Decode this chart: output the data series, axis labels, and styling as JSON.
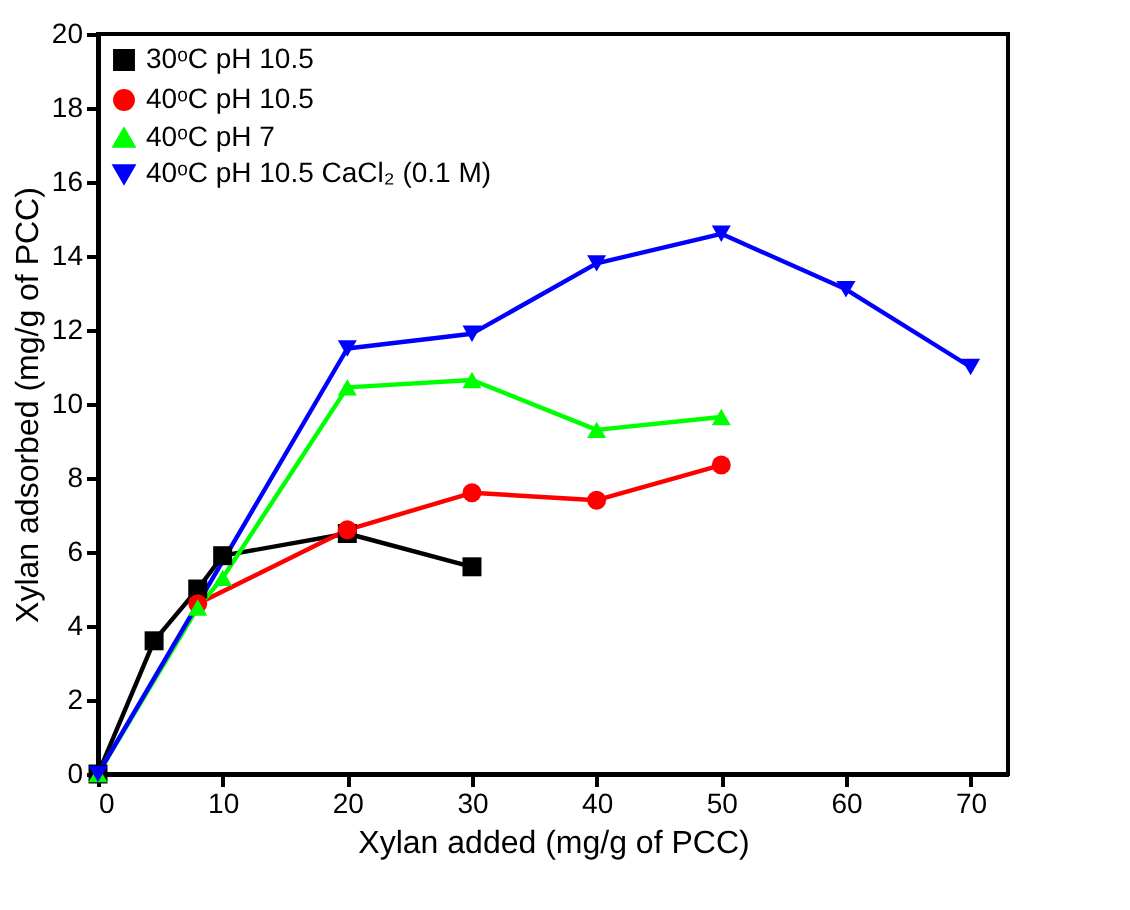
{
  "chart_data": {
    "type": "line",
    "xlabel": "Xylan added (mg/g of PCC)",
    "ylabel": "Xylan adsorbed (mg/g of PCC)",
    "xlim": [
      0,
      73
    ],
    "xticks": [
      0,
      10,
      20,
      30,
      40,
      50,
      60,
      70
    ],
    "ylim": [
      0,
      20
    ],
    "yticks": [
      0,
      2,
      4,
      6,
      8,
      10,
      12,
      14,
      16,
      18,
      20
    ],
    "grid": false,
    "legend": "top left",
    "line_style": "solid",
    "series": [
      {
        "name": "30ᵒC pH 10.5",
        "color": "#000000",
        "marker": "square",
        "x": [
          0,
          4.5,
          8,
          10,
          20,
          30
        ],
        "values": [
          0,
          3.6,
          5.0,
          5.9,
          6.5,
          5.6
        ]
      },
      {
        "name": "40ᵒC pH 10.5",
        "color": "#ff0000",
        "marker": "circle",
        "x": [
          8,
          20,
          30,
          40,
          50
        ],
        "values": [
          4.6,
          6.6,
          7.6,
          7.4,
          8.35
        ]
      },
      {
        "name": "40ᵒC pH 7",
        "color": "#00ff00",
        "marker": "triangle",
        "x": [
          0,
          8,
          10,
          20,
          30,
          40,
          50
        ],
        "values": [
          0,
          4.5,
          5.3,
          10.45,
          10.65,
          9.3,
          9.65
        ]
      },
      {
        "name": "40ᵒC pH 10.5 CaCl₂ (0.1 M)",
        "color": "#0000ff",
        "marker": "triangle-down",
        "x": [
          0,
          20,
          30,
          40,
          50,
          60,
          70
        ],
        "values": [
          0,
          11.5,
          11.9,
          13.8,
          14.6,
          13.1,
          11.0
        ]
      }
    ]
  }
}
